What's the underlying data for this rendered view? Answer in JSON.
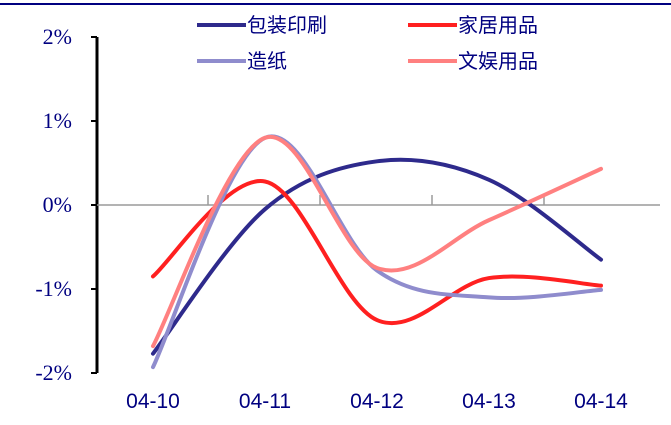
{
  "chart_data": {
    "type": "line",
    "title": "",
    "xlabel": "",
    "ylabel": "",
    "categories": [
      "04-10",
      "04-11",
      "04-12",
      "04-13",
      "04-14"
    ],
    "ylim": [
      -2,
      2
    ],
    "yticks": [
      "-2%",
      "-1%",
      "0%",
      "1%",
      "2%"
    ],
    "grid": false,
    "legend_position": "top",
    "series": [
      {
        "name": "包装印刷",
        "color": "#2e2a8c",
        "values": [
          -1.77,
          -0.05,
          0.52,
          0.3,
          -0.65
        ]
      },
      {
        "name": "家居用品",
        "color": "#ff2020",
        "values": [
          -0.85,
          0.28,
          -1.37,
          -0.87,
          -0.96
        ]
      },
      {
        "name": "造纸",
        "color": "#8f8ccd",
        "values": [
          -1.93,
          0.8,
          -0.78,
          -1.1,
          -1.01
        ]
      },
      {
        "name": "文娱用品",
        "color": "#ff8080",
        "values": [
          -1.68,
          0.8,
          -0.75,
          -0.18,
          0.43
        ]
      }
    ]
  }
}
